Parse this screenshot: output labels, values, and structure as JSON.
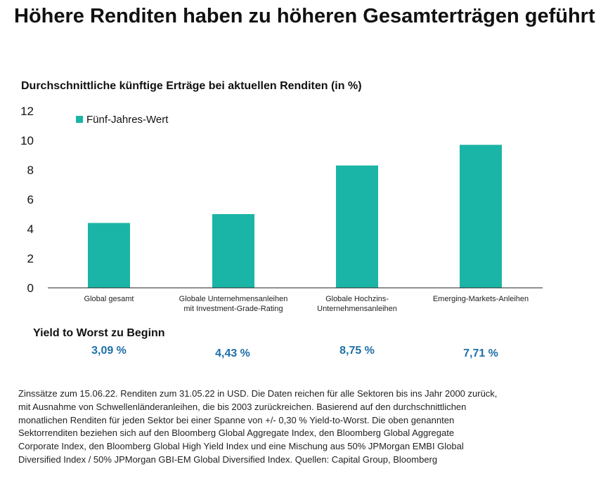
{
  "title": "Höhere Renditen haben zu höheren Gesamterträgen geführt",
  "subtitle": "Durchschnittliche künftige Erträge bei aktuellen Renditen (in %)",
  "chart_data": {
    "type": "bar",
    "title": "Durchschnittliche künftige Erträge bei aktuellen Renditen (in %)",
    "categories": [
      [
        "Global gesamt"
      ],
      [
        "Globale Unternehmensanleihen",
        "mit Investment-Grade-Rating"
      ],
      [
        "Globale Hochzins-",
        "Unternehmensanleihen"
      ],
      [
        "Emerging-Markets-Anleihen"
      ]
    ],
    "series": [
      {
        "name": "Fünf-Jahres-Wert",
        "values": [
          4.4,
          5.0,
          8.3,
          9.7
        ],
        "color": "#1ab5a6"
      }
    ],
    "ylim": [
      0,
      12
    ],
    "yticks": [
      0,
      2,
      4,
      6,
      8,
      10,
      12
    ],
    "xlabel": "",
    "ylabel": "",
    "grid": false,
    "legend_position": "top-left"
  },
  "yield_to_worst": {
    "heading": "Yield to Worst zu Beginn",
    "values": [
      "3,09 %",
      "4,43 %",
      "8,75 %",
      "7,71 %"
    ]
  },
  "footnote_lines": [
    "Zinssätze zum 15.06.22. Renditen zum 31.05.22 in USD.  Die Daten reichen für alle Sektoren bis ins Jahr 2000 zurück,",
    "mit Ausnahme von Schwellenländeranleihen, die bis 2003 zurückreichen. Basierend auf den durchschnittlichen",
    "monatlichen Renditen für jeden Sektor bei einer Spanne von +/- 0,30 % Yield-to-Worst. Die oben genannten",
    "Sektorrenditen beziehen sich auf den Bloomberg Global Aggregate Index, den Bloomberg Global Aggregate",
    "Corporate Index, den Bloomberg Global High Yield Index und eine Mischung aus 50% JPMorgan EMBI Global",
    "Diversified Index / 50% JPMorgan GBI-EM Global Diversified Index. Quellen: Capital Group, Bloomberg"
  ]
}
